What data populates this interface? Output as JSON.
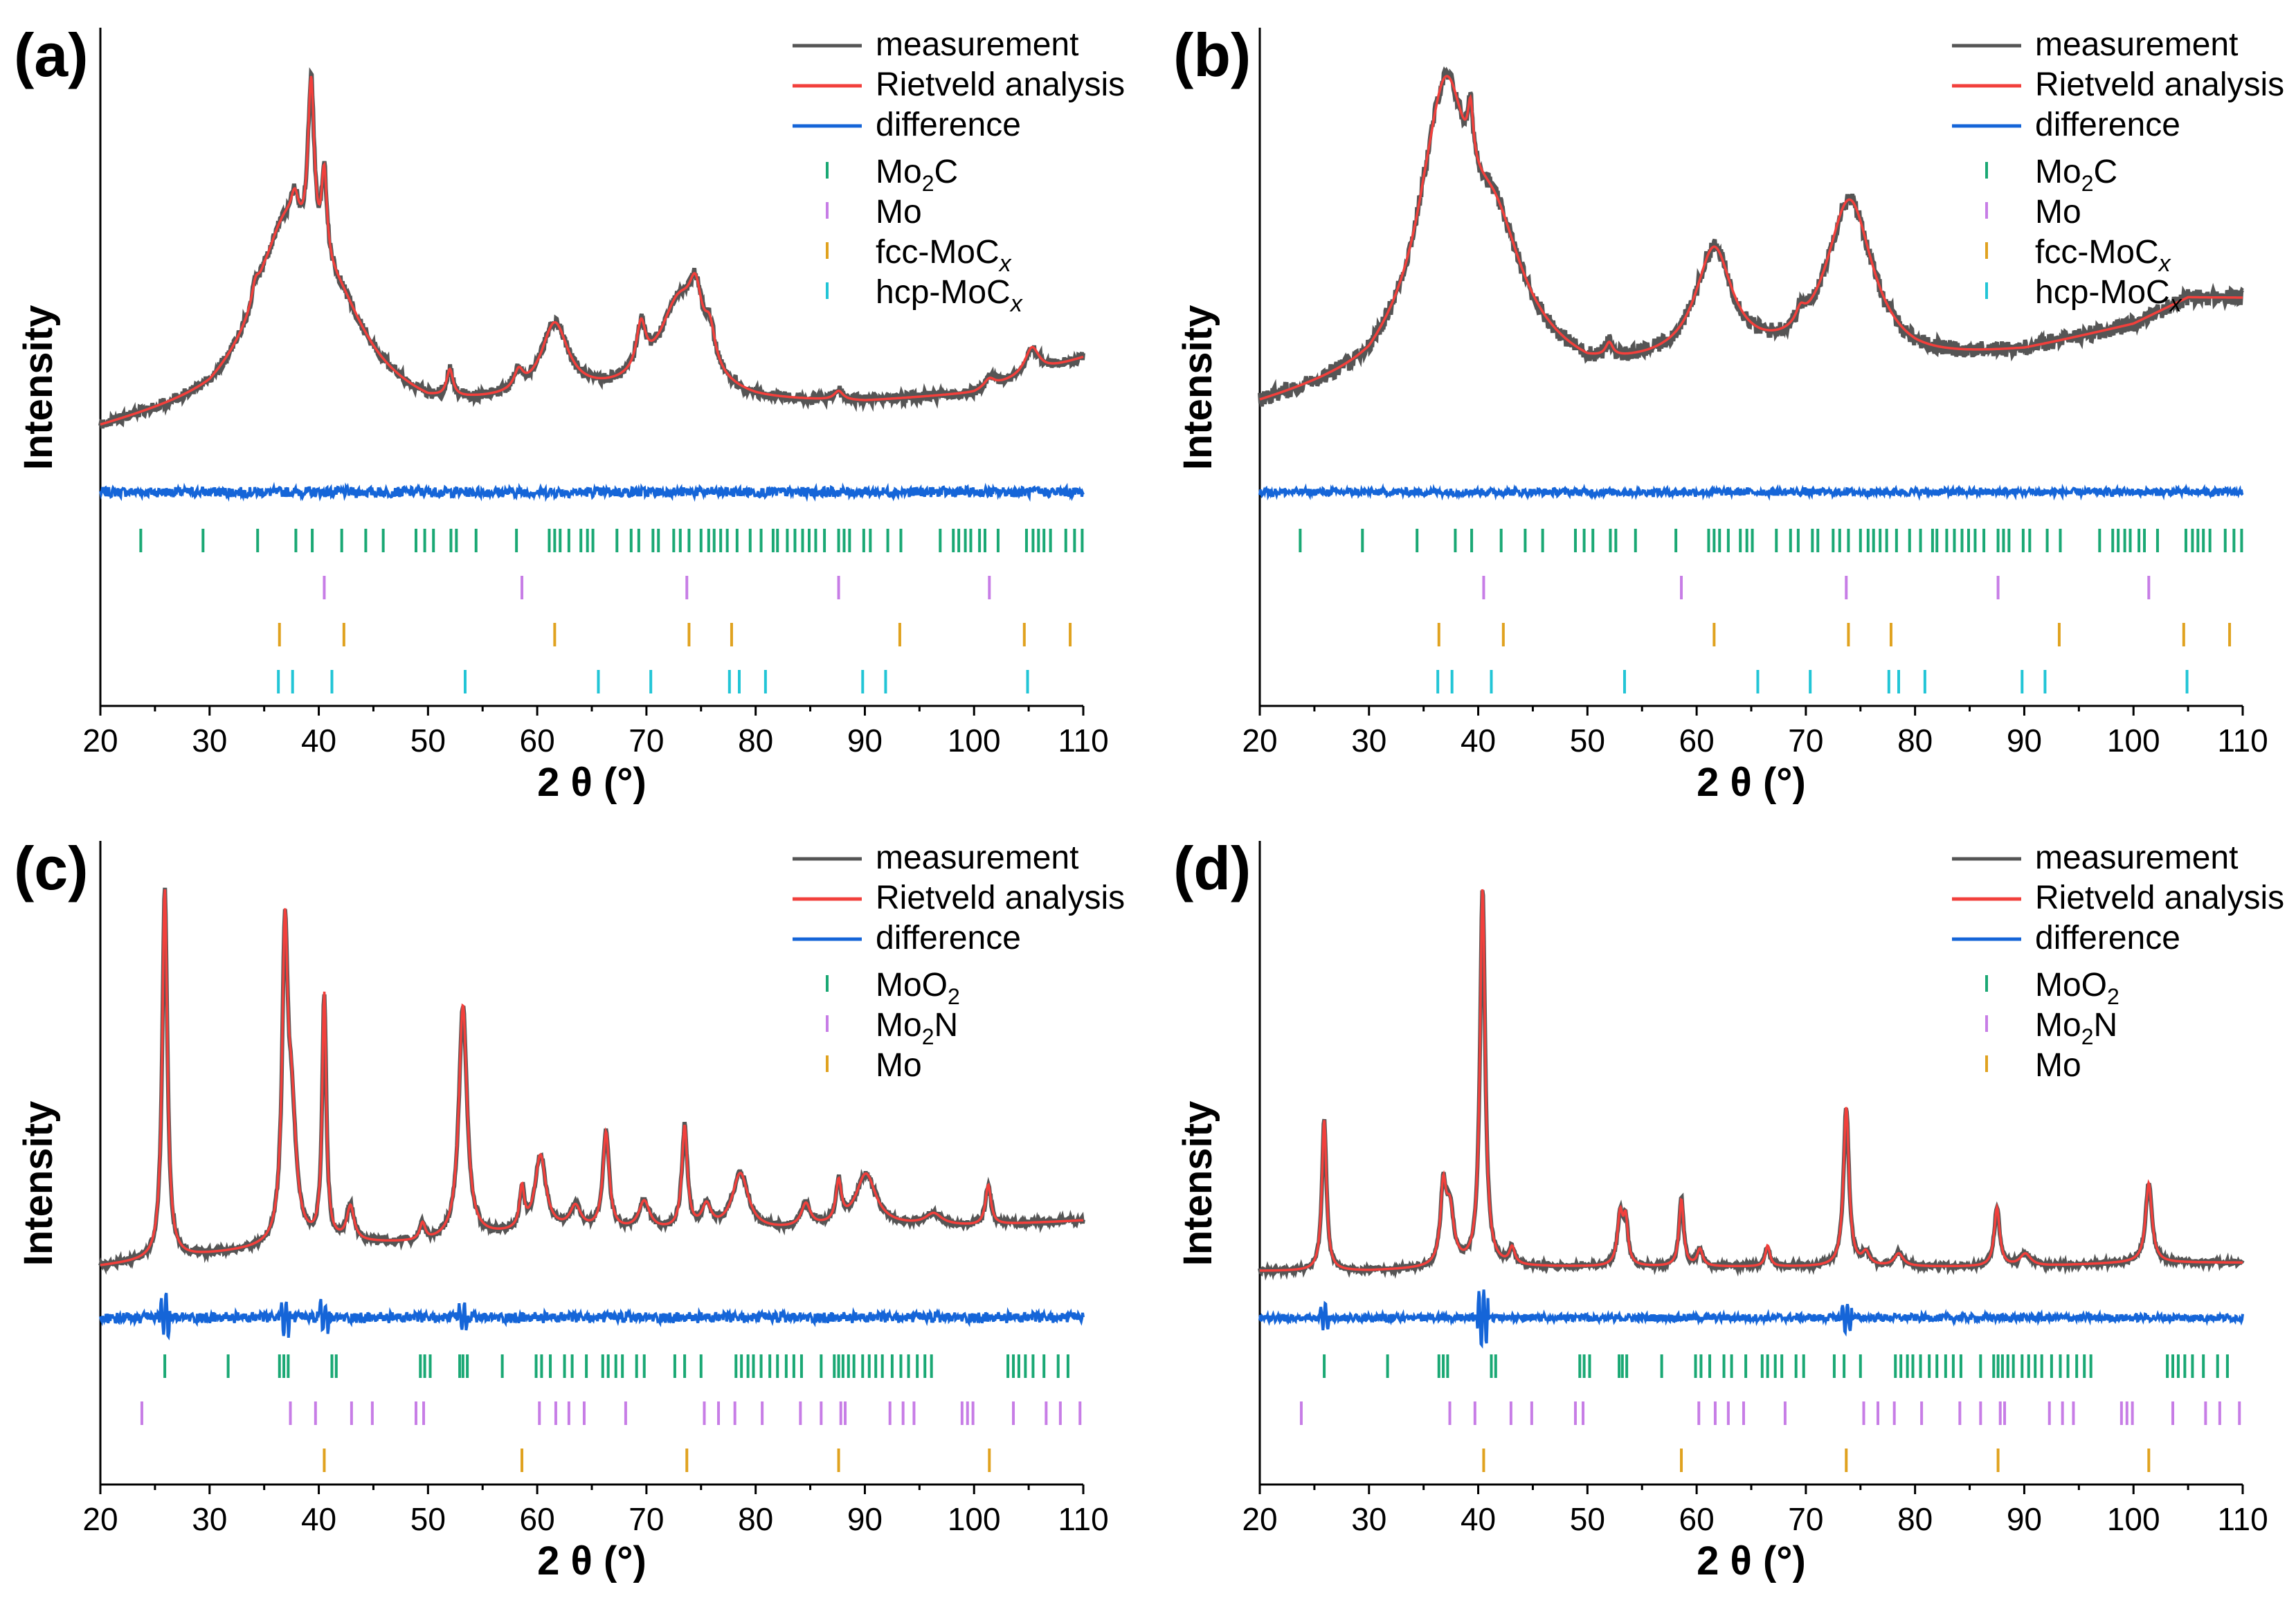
{
  "colors": {
    "measurement": "#555555",
    "rietveld": "#f2403c",
    "difference": "#1565d8",
    "phase1": "#1aa874",
    "phase2": "#c77de6",
    "phase3": "#e0a21f",
    "phase4": "#22c5d6"
  },
  "chart_data": [
    {
      "type": "line",
      "panel_label": "(a)",
      "xlabel": "2 θ (°)",
      "ylabel": "Intensity",
      "xlim": [
        20,
        110
      ],
      "ylim": [
        0,
        100
      ],
      "xticks": [
        "20",
        "30",
        "40",
        "50",
        "60",
        "70",
        "80",
        "90",
        "100",
        "110"
      ],
      "legend": [
        "measurement",
        "Rietveld analysis",
        "difference"
      ],
      "phases": [
        {
          "name": "Mo2C",
          "main": "Mo",
          "sub": "2",
          "tail": "C",
          "italic": "",
          "positions": [
            23.7,
            29.4,
            34.4,
            37.9,
            39.4,
            42.1,
            44.3,
            45.9,
            48.9,
            49.7,
            50.5,
            52.1,
            52.6,
            54.4,
            58.1,
            61.1,
            61.6,
            62.1,
            62.9,
            64.0,
            64.6,
            65.1,
            67.3,
            68.6,
            69.3,
            70.6,
            71.1,
            72.5,
            73.1,
            73.9,
            75.0,
            75.7,
            76.2,
            76.8,
            77.4,
            78.3,
            79.5,
            80.5,
            81.6,
            82.0,
            82.9,
            83.6,
            84.3,
            84.9,
            85.5,
            86.3,
            87.6,
            88.1,
            88.6,
            89.9,
            90.5,
            92.1,
            93.3,
            96.9,
            98.1,
            98.6,
            99.2,
            99.7,
            100.5,
            101.0,
            102.2,
            104.8,
            105.4,
            105.9,
            106.4,
            107.0,
            108.4,
            109.2,
            109.9
          ]
        },
        {
          "name": "Mo",
          "main": "Mo",
          "sub": "",
          "tail": "",
          "italic": "",
          "positions": [
            40.5,
            58.6,
            73.7,
            87.6,
            101.4
          ]
        },
        {
          "name": "fcc-MoCx",
          "main": "fcc-MoC",
          "sub": "",
          "tail": "",
          "italic": "x",
          "positions": [
            36.4,
            42.3,
            61.6,
            73.9,
            77.8,
            93.2,
            104.6,
            108.8
          ]
        },
        {
          "name": "hcp-MoCx",
          "main": "hcp-MoC",
          "sub": "",
          "tail": "",
          "italic": "x",
          "positions": [
            36.3,
            37.6,
            41.2,
            53.4,
            65.6,
            70.4,
            77.6,
            78.5,
            80.9,
            89.8,
            91.9,
            104.9
          ]
        }
      ],
      "baseline": [
        [
          20,
          5
        ],
        [
          30,
          8
        ],
        [
          35,
          12
        ],
        [
          50,
          7
        ],
        [
          60,
          8
        ],
        [
          70,
          9
        ],
        [
          80,
          8
        ],
        [
          90,
          8
        ],
        [
          100,
          9
        ],
        [
          105,
          11
        ],
        [
          110,
          13
        ]
      ],
      "peaks": [
        [
          37,
          14,
          2.8
        ],
        [
          41.5,
          8,
          3.5
        ],
        [
          39.3,
          19,
          0.35
        ],
        [
          40.5,
          10,
          0.3
        ],
        [
          37.8,
          3,
          0.4
        ],
        [
          34.2,
          2,
          0.4
        ],
        [
          52,
          3,
          0.35
        ],
        [
          58.3,
          2,
          0.5
        ],
        [
          61.6,
          8,
          1.5
        ],
        [
          69.5,
          5,
          0.5
        ],
        [
          73,
          10,
          2.2
        ],
        [
          74.5,
          6,
          0.7
        ],
        [
          75.8,
          4,
          0.6
        ],
        [
          87.6,
          1,
          0.5
        ],
        [
          105.3,
          3,
          0.8
        ],
        [
          101.4,
          1,
          0.6
        ]
      ],
      "diff_amp": 1.2,
      "diff_base": -1.5
    },
    {
      "type": "line",
      "panel_label": "(b)",
      "xlabel": "2 θ (°)",
      "ylabel": "Intensity",
      "xlim": [
        20,
        110
      ],
      "ylim": [
        0,
        100
      ],
      "xticks": [
        "20",
        "30",
        "40",
        "50",
        "60",
        "70",
        "80",
        "90",
        "100",
        "110"
      ],
      "legend": [
        "measurement",
        "Rietveld analysis",
        "difference"
      ],
      "phases": [
        {
          "name": "Mo2C",
          "main": "Mo",
          "sub": "2",
          "tail": "C",
          "italic": "",
          "positions": [
            23.7,
            29.4,
            34.4,
            37.9,
            39.4,
            42.1,
            44.3,
            45.9,
            48.9,
            49.7,
            50.5,
            52.1,
            52.6,
            54.4,
            58.1,
            61.1,
            61.6,
            62.1,
            62.9,
            64.0,
            64.6,
            65.1,
            67.3,
            68.6,
            69.3,
            70.6,
            71.1,
            72.5,
            73.1,
            73.9,
            75.0,
            75.7,
            76.2,
            76.8,
            77.4,
            78.3,
            79.5,
            80.5,
            81.6,
            82.0,
            82.9,
            83.6,
            84.3,
            84.9,
            85.5,
            86.3,
            87.6,
            88.1,
            88.6,
            89.9,
            90.5,
            92.1,
            93.3,
            96.9,
            98.1,
            98.6,
            99.2,
            99.7,
            100.5,
            101.0,
            102.2,
            104.8,
            105.4,
            105.9,
            106.4,
            107.0,
            108.4,
            109.2,
            109.9
          ]
        },
        {
          "name": "Mo",
          "main": "Mo",
          "sub": "",
          "tail": "",
          "italic": "",
          "positions": [
            40.5,
            58.6,
            73.7,
            87.6,
            101.4
          ]
        },
        {
          "name": "fcc-MoCx",
          "main": "fcc-MoC",
          "sub": "",
          "tail": "",
          "italic": "x",
          "positions": [
            36.4,
            42.3,
            61.6,
            73.9,
            77.8,
            93.2,
            104.6,
            108.8
          ]
        },
        {
          "name": "hcp-MoCx",
          "main": "hcp-MoC",
          "sub": "",
          "tail": "",
          "italic": "x",
          "positions": [
            36.3,
            37.6,
            41.2,
            53.4,
            65.6,
            70.4,
            77.6,
            78.5,
            80.9,
            89.8,
            91.9,
            104.9
          ]
        }
      ],
      "baseline": [
        [
          20,
          5
        ],
        [
          30,
          7
        ],
        [
          35,
          10
        ],
        [
          50,
          7
        ],
        [
          60,
          8
        ],
        [
          70,
          8
        ],
        [
          80,
          8
        ],
        [
          90,
          9
        ],
        [
          100,
          11
        ],
        [
          105,
          13
        ],
        [
          110,
          13
        ]
      ],
      "peaks": [
        [
          37,
          17,
          2.5
        ],
        [
          41.5,
          8,
          3.2
        ],
        [
          39.3,
          4,
          0.3
        ],
        [
          61.6,
          8,
          2.0
        ],
        [
          74,
          12,
          2.6
        ],
        [
          69.5,
          1,
          0.5
        ],
        [
          52,
          1,
          0.4
        ]
      ],
      "diff_amp": 0.9,
      "diff_base": -1.5
    },
    {
      "type": "line",
      "panel_label": "(c)",
      "xlabel": "2 θ (°)",
      "ylabel": "Intensity",
      "xlim": [
        20,
        110
      ],
      "ylim": [
        0,
        100
      ],
      "xticks": [
        "20",
        "30",
        "40",
        "50",
        "60",
        "70",
        "80",
        "90",
        "100",
        "110"
      ],
      "legend": [
        "measurement",
        "Rietveld analysis",
        "difference"
      ],
      "phases": [
        {
          "name": "MoO2",
          "main": "MoO",
          "sub": "2",
          "tail": "",
          "italic": "",
          "positions": [
            25.9,
            31.7,
            36.4,
            36.8,
            37.2,
            41.2,
            41.6,
            49.3,
            49.7,
            50.2,
            52.9,
            53.2,
            53.6,
            56.8,
            59.9,
            60.4,
            61.2,
            62.5,
            63.2,
            64.5,
            66.0,
            66.5,
            67.2,
            67.8,
            69.1,
            69.8,
            72.6,
            73.5,
            75.0,
            78.2,
            78.7,
            79.3,
            79.8,
            80.5,
            81.3,
            82.0,
            82.8,
            83.5,
            84.2,
            86.0,
            87.2,
            87.6,
            88.0,
            88.5,
            89.0,
            89.8,
            90.4,
            91.0,
            91.6,
            92.5,
            93.3,
            94.0,
            94.8,
            95.5,
            96.1,
            103.1,
            103.6,
            104.1,
            104.7,
            105.4,
            106.4,
            107.7,
            108.6
          ]
        },
        {
          "name": "Mo2N",
          "main": "Mo",
          "sub": "2",
          "tail": "N",
          "italic": "",
          "positions": [
            23.8,
            37.4,
            39.7,
            43.0,
            44.9,
            48.9,
            49.6,
            60.2,
            61.7,
            62.9,
            64.3,
            68.1,
            75.3,
            76.6,
            78.1,
            80.6,
            84.1,
            86.0,
            87.8,
            88.2,
            92.3,
            93.5,
            94.5,
            98.9,
            99.4,
            99.9,
            103.6,
            106.6,
            107.9,
            109.7
          ]
        },
        {
          "name": "Mo",
          "main": "Mo",
          "sub": "",
          "tail": "",
          "italic": "",
          "positions": [
            40.5,
            58.6,
            73.7,
            87.6,
            101.4
          ]
        }
      ],
      "baseline": [
        [
          20,
          6
        ],
        [
          25,
          7
        ],
        [
          30,
          8
        ],
        [
          40,
          10
        ],
        [
          50,
          10
        ],
        [
          60,
          12
        ],
        [
          70,
          12
        ],
        [
          80,
          12
        ],
        [
          90,
          13
        ],
        [
          100,
          13
        ],
        [
          110,
          14
        ]
      ],
      "peaks": [
        [
          25.9,
          65,
          0.28
        ],
        [
          36.9,
          50,
          0.3
        ],
        [
          37.5,
          22,
          0.5
        ],
        [
          40.5,
          43,
          0.22
        ],
        [
          42.9,
          6,
          0.4
        ],
        [
          49.5,
          3,
          0.3
        ],
        [
          53.2,
          41,
          0.45
        ],
        [
          58.6,
          7,
          0.25
        ],
        [
          60.3,
          13,
          0.6
        ],
        [
          63.5,
          4,
          0.6
        ],
        [
          66.3,
          17,
          0.35
        ],
        [
          69.8,
          5,
          0.6
        ],
        [
          73.5,
          18,
          0.3
        ],
        [
          75.5,
          4,
          0.5
        ],
        [
          78.6,
          10,
          0.9
        ],
        [
          84.6,
          4,
          0.5
        ],
        [
          87.6,
          7,
          0.3
        ],
        [
          90.1,
          9,
          1.1
        ],
        [
          96.3,
          2,
          0.9
        ],
        [
          101.3,
          7,
          0.3
        ]
      ],
      "diff_amp": 1.3,
      "diff_base": -1.5
    },
    {
      "type": "line",
      "panel_label": "(d)",
      "xlabel": "2 θ (°)",
      "ylabel": "Intensity",
      "xlim": [
        20,
        110
      ],
      "ylim": [
        0,
        100
      ],
      "xticks": [
        "20",
        "30",
        "40",
        "50",
        "60",
        "70",
        "80",
        "90",
        "100",
        "110"
      ],
      "legend": [
        "measurement",
        "Rietveld analysis",
        "difference"
      ],
      "phases": [
        {
          "name": "MoO2",
          "main": "MoO",
          "sub": "2",
          "tail": "",
          "italic": "",
          "positions": [
            25.9,
            31.7,
            36.4,
            36.8,
            37.2,
            41.2,
            41.6,
            49.3,
            49.7,
            50.2,
            52.9,
            53.2,
            53.6,
            56.8,
            59.9,
            60.4,
            61.2,
            62.5,
            63.2,
            64.5,
            66.0,
            66.5,
            67.2,
            67.8,
            69.1,
            69.8,
            72.6,
            73.5,
            75.0,
            78.2,
            78.7,
            79.3,
            79.8,
            80.5,
            81.3,
            82.0,
            82.8,
            83.5,
            84.2,
            86.0,
            87.2,
            87.6,
            88.0,
            88.5,
            89.0,
            89.8,
            90.4,
            91.0,
            91.6,
            92.5,
            93.3,
            94.0,
            94.8,
            95.5,
            96.1,
            103.1,
            103.6,
            104.1,
            104.7,
            105.4,
            106.4,
            107.7,
            108.6
          ]
        },
        {
          "name": "Mo2N",
          "main": "Mo",
          "sub": "2",
          "tail": "N",
          "italic": "",
          "positions": [
            23.8,
            37.4,
            39.7,
            43.0,
            44.9,
            48.9,
            49.6,
            60.2,
            61.7,
            62.9,
            64.3,
            68.1,
            75.3,
            76.6,
            78.1,
            80.6,
            84.1,
            86.0,
            87.8,
            88.2,
            92.3,
            93.5,
            94.5,
            98.9,
            99.4,
            99.9,
            103.6,
            106.6,
            107.9,
            109.7
          ]
        },
        {
          "name": "Mo",
          "main": "Mo",
          "sub": "",
          "tail": "",
          "italic": "",
          "positions": [
            40.5,
            58.6,
            73.7,
            87.6,
            101.4
          ]
        }
      ],
      "baseline": [
        [
          20,
          7
        ],
        [
          30,
          7
        ],
        [
          40,
          8
        ],
        [
          50,
          8
        ],
        [
          60,
          8
        ],
        [
          70,
          8
        ],
        [
          80,
          8
        ],
        [
          90,
          8
        ],
        [
          100,
          9
        ],
        [
          110,
          9
        ]
      ],
      "peaks": [
        [
          25.9,
          36,
          0.25
        ],
        [
          36.8,
          17,
          0.3
        ],
        [
          37.4,
          13,
          0.45
        ],
        [
          40.4,
          90,
          0.28
        ],
        [
          43.1,
          4,
          0.3
        ],
        [
          53.0,
          12,
          0.3
        ],
        [
          53.5,
          10,
          0.25
        ],
        [
          58.6,
          16,
          0.25
        ],
        [
          60.3,
          4,
          0.3
        ],
        [
          66.5,
          5,
          0.25
        ],
        [
          73.7,
          38,
          0.3
        ],
        [
          75.5,
          3,
          0.4
        ],
        [
          78.5,
          3,
          0.5
        ],
        [
          87.5,
          14,
          0.3
        ],
        [
          90.1,
          3,
          0.6
        ],
        [
          101.4,
          19,
          0.35
        ]
      ],
      "diff_amp": 0.9,
      "diff_base": -1.5
    }
  ]
}
